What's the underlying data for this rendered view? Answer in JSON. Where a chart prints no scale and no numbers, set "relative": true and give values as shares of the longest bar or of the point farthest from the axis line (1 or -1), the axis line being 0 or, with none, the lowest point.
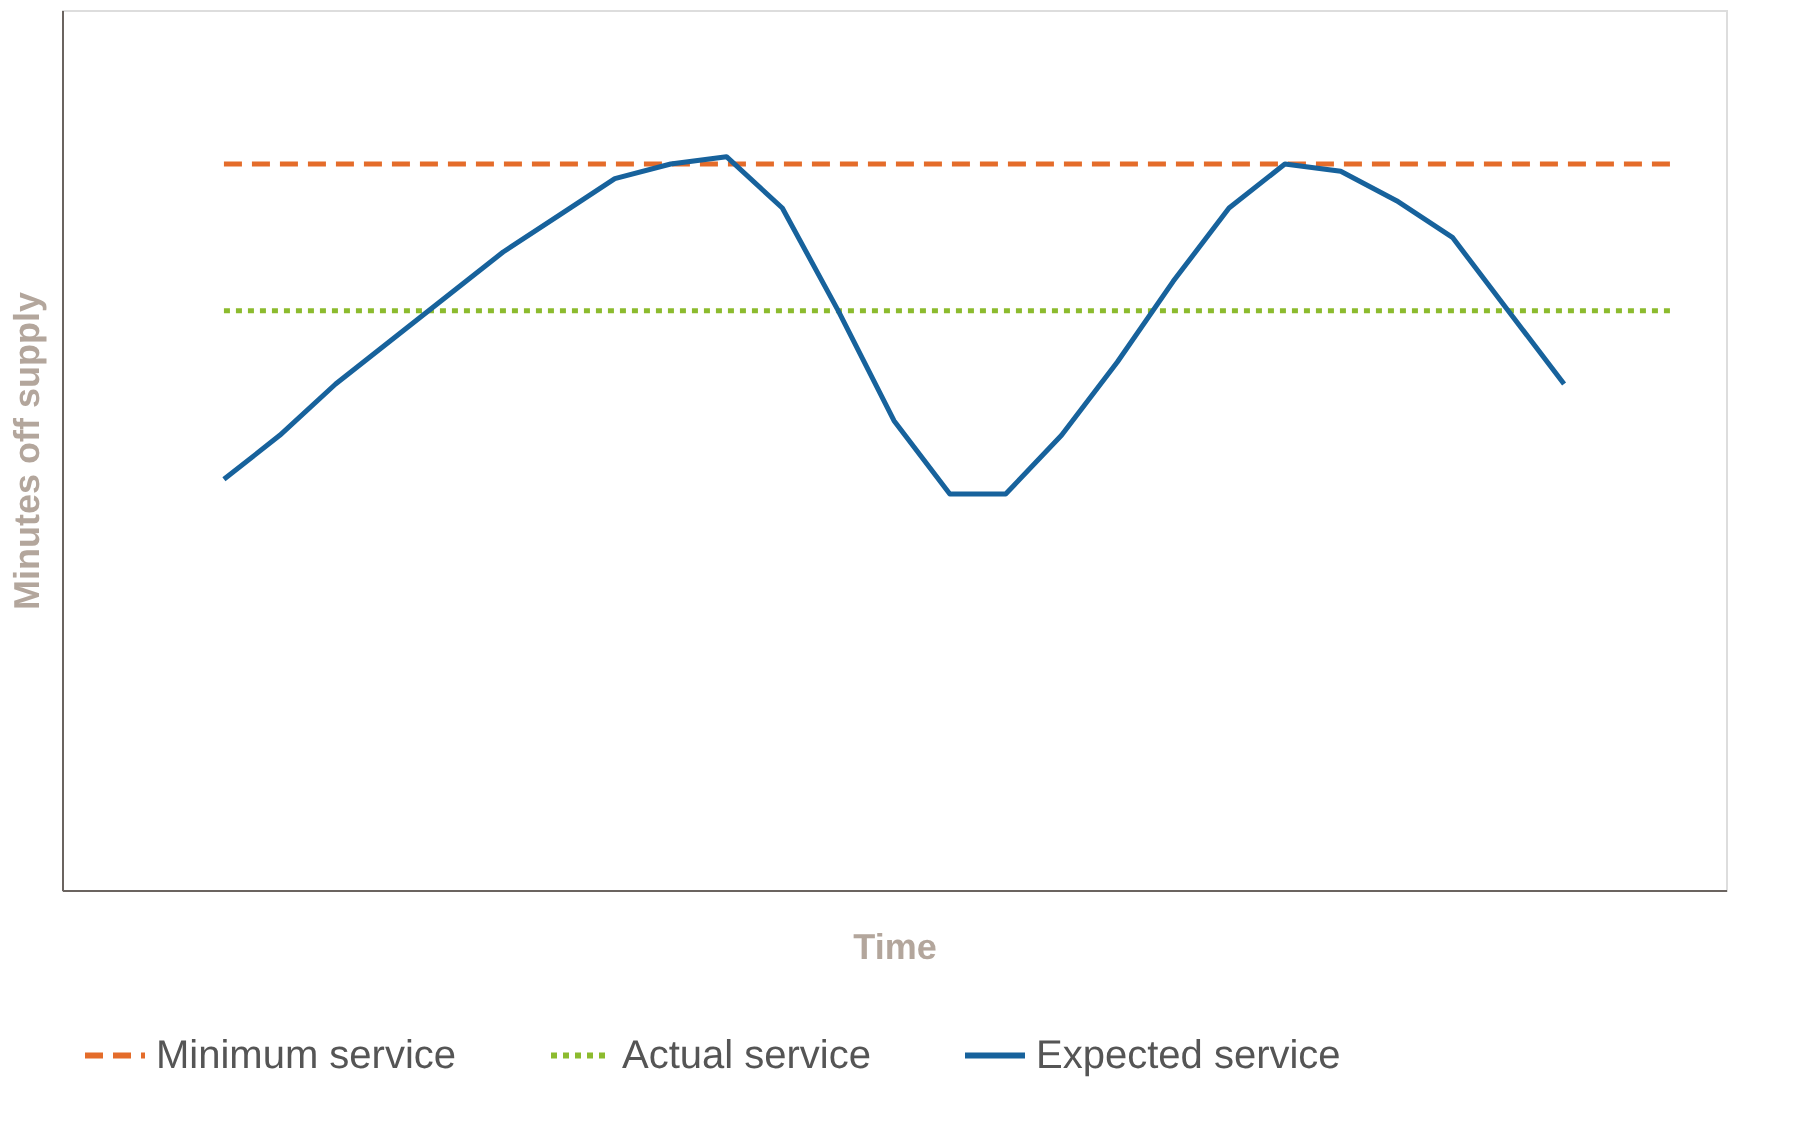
{
  "chart_data": {
    "type": "line",
    "relative": true,
    "xlabel": "Time",
    "ylabel": "Minutes off supply",
    "categories": [
      null,
      null,
      null,
      null,
      null,
      null,
      null,
      null,
      null,
      null,
      null,
      null,
      null,
      null,
      null,
      null,
      null,
      null,
      null,
      null,
      null,
      null,
      null,
      null,
      null,
      null,
      null
    ],
    "series": [
      {
        "name": "Minimum service",
        "color": "#e46c2a",
        "line_style": "dashed",
        "values": [
          0.99,
          0.99,
          0.99,
          0.99,
          0.99,
          0.99,
          0.99,
          0.99,
          0.99,
          0.99,
          0.99,
          0.99,
          0.99,
          0.99,
          0.99,
          0.99,
          0.99,
          0.99,
          0.99,
          0.99,
          0.99,
          0.99,
          0.99,
          0.99,
          0.99,
          0.99,
          0.99
        ]
      },
      {
        "name": "Actual service",
        "color": "#8cbb2e",
        "line_style": "dotted",
        "values": [
          0.79,
          0.79,
          0.79,
          0.79,
          0.79,
          0.79,
          0.79,
          0.79,
          0.79,
          0.79,
          0.79,
          0.79,
          0.79,
          0.79,
          0.79,
          0.79,
          0.79,
          0.79,
          0.79,
          0.79,
          0.79,
          0.79,
          0.79,
          0.79,
          0.79,
          0.79,
          0.79
        ]
      },
      {
        "name": "Expected service",
        "color": "#17629c",
        "line_style": "solid",
        "values": [
          0.56,
          0.62,
          0.69,
          0.75,
          0.81,
          0.87,
          0.92,
          0.97,
          0.99,
          1.0,
          0.93,
          0.79,
          0.64,
          0.54,
          0.54,
          0.62,
          0.72,
          0.83,
          0.93,
          0.99,
          0.98,
          0.94,
          0.89,
          0.79,
          0.69,
          null,
          null
        ]
      }
    ],
    "legend": "bottom",
    "grid": false
  }
}
